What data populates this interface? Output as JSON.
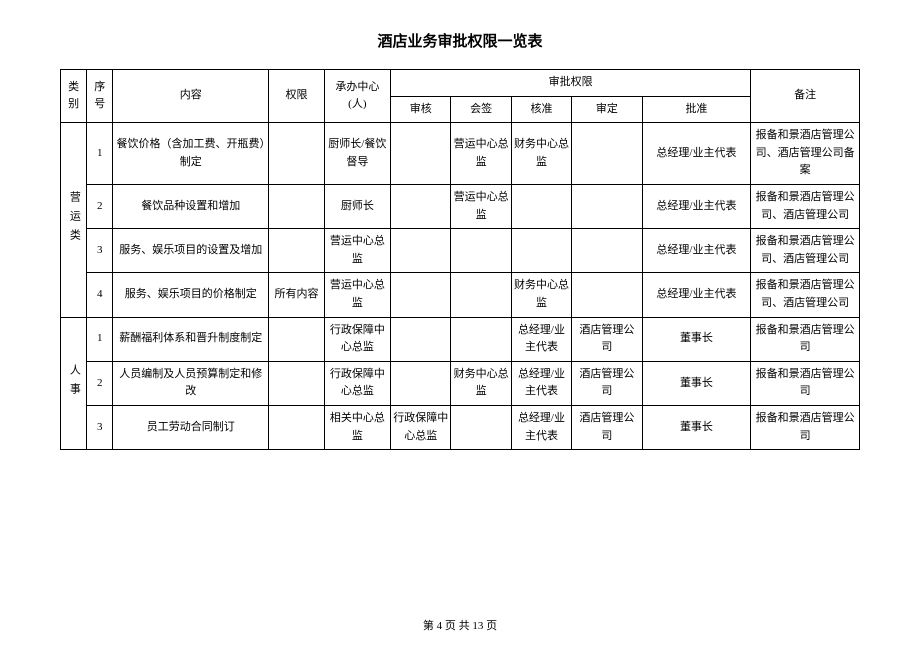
{
  "title": "酒店业务审批权限一览表",
  "header": {
    "category": "类别",
    "num": "序号",
    "content": "内容",
    "authority": "权限",
    "office": "承办中心(人)",
    "approval_span": "审批权限",
    "review": "审核",
    "cosign": "会签",
    "approve": "核准",
    "decide": "审定",
    "ratify": "批准",
    "notes": "备注"
  },
  "categories": [
    {
      "label": "营运类",
      "rowspan": 4
    },
    {
      "label": "人事",
      "rowspan": 3
    }
  ],
  "rows": [
    {
      "num": "1",
      "content": "餐饮价格（含加工费、开瓶费）制定",
      "authority": "",
      "office": "厨师长/餐饮督导",
      "review": "",
      "cosign": "营运中心总监",
      "approve": "财务中心总监",
      "decide": "",
      "ratify": "总经理/业主代表",
      "notes": "报备和景酒店管理公司、酒店管理公司备案"
    },
    {
      "num": "2",
      "content": "餐饮品种设置和增加",
      "authority": "",
      "office": "厨师长",
      "review": "",
      "cosign": "营运中心总监",
      "approve": "",
      "decide": "",
      "ratify": "总经理/业主代表",
      "notes": "报备和景酒店管理公司、酒店管理公司"
    },
    {
      "num": "3",
      "content": "服务、娱乐项目的设置及增加",
      "authority": "",
      "office": "营运中心总监",
      "review": "",
      "cosign": "",
      "approve": "",
      "decide": "",
      "ratify": "总经理/业主代表",
      "notes": "报备和景酒店管理公司、酒店管理公司"
    },
    {
      "num": "4",
      "content": "服务、娱乐项目的价格制定",
      "authority": "所有内容",
      "office": "营运中心总监",
      "review": "",
      "cosign": "",
      "approve": "财务中心总监",
      "decide": "",
      "ratify": "总经理/业主代表",
      "notes": "报备和景酒店管理公司、酒店管理公司"
    },
    {
      "num": "1",
      "content": "薪酬福利体系和晋升制度制定",
      "authority": "",
      "office": "行政保障中心总监",
      "review": "",
      "cosign": "",
      "approve": "总经理/业主代表",
      "decide": "酒店管理公司",
      "ratify": "董事长",
      "notes": "报备和景酒店管理公司"
    },
    {
      "num": "2",
      "content": "人员编制及人员预算制定和修改",
      "authority": "",
      "office": "行政保障中心总监",
      "review": "",
      "cosign": "财务中心总监",
      "approve": "总经理/业主代表",
      "decide": "酒店管理公司",
      "ratify": "董事长",
      "notes": "报备和景酒店管理公司"
    },
    {
      "num": "3",
      "content": "员工劳动合同制订",
      "authority": "",
      "office": "相关中心总监",
      "review": "行政保障中心总监",
      "cosign": "",
      "approve": "总经理/业主代表",
      "decide": "酒店管理公司",
      "ratify": "董事长",
      "notes": "报备和景酒店管理公司"
    }
  ],
  "footer": {
    "page_current": "4",
    "page_total": "13",
    "prefix": "第 ",
    "mid": " 页 共 ",
    "suffix": " 页"
  }
}
